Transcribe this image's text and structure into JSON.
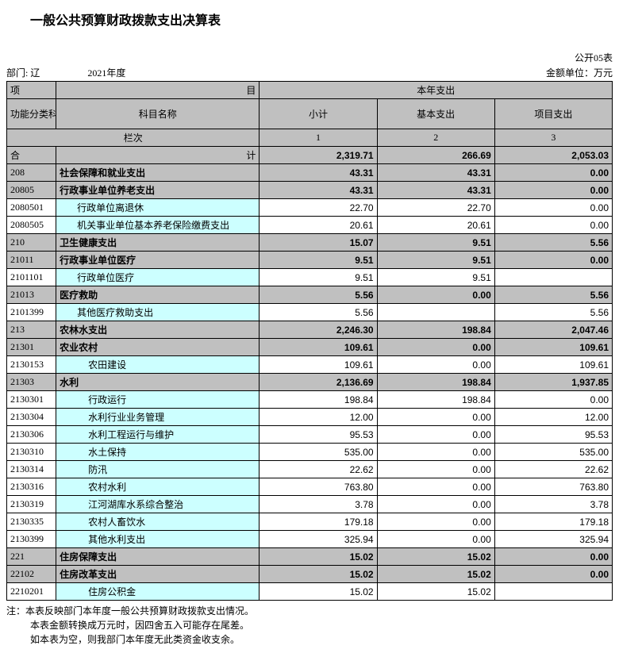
{
  "title": "一般公共预算财政拨款支出决算表",
  "form_no": "公开05表",
  "dept_label": "部门: 辽",
  "year": "2021年度",
  "unit": "金额单位：万元",
  "headers": {
    "project": "项",
    "project_suffix": "目",
    "current_year": "本年支出",
    "func_code": "功能分类科目编码",
    "subj_name": "科目名称",
    "subtotal": "小计",
    "basic": "基本支出",
    "proj": "项目支出",
    "lanci": "栏次",
    "c1": "1",
    "c2": "2",
    "c3": "3",
    "total_code": "合",
    "total_name": "计"
  },
  "total": {
    "v1": "2,319.71",
    "v2": "266.69",
    "v3": "2,053.03"
  },
  "rows": [
    {
      "code": "208",
      "name": "社会保障和就业支出",
      "v1": "43.31",
      "v2": "43.31",
      "v3": "0.00",
      "lvl": 0,
      "shade": true
    },
    {
      "code": "20805",
      "name": "行政事业单位养老支出",
      "v1": "43.31",
      "v2": "43.31",
      "v3": "0.00",
      "lvl": 0,
      "shade": true
    },
    {
      "code": "2080501",
      "name": "行政单位离退休",
      "v1": "22.70",
      "v2": "22.70",
      "v3": "0.00",
      "lvl": 1,
      "shade": false
    },
    {
      "code": "2080505",
      "name": "机关事业单位基本养老保险缴费支出",
      "v1": "20.61",
      "v2": "20.61",
      "v3": "0.00",
      "lvl": 1,
      "shade": false
    },
    {
      "code": "210",
      "name": "卫生健康支出",
      "v1": "15.07",
      "v2": "9.51",
      "v3": "5.56",
      "lvl": 0,
      "shade": true
    },
    {
      "code": "21011",
      "name": "行政事业单位医疗",
      "v1": "9.51",
      "v2": "9.51",
      "v3": "0.00",
      "lvl": 0,
      "shade": true
    },
    {
      "code": "2101101",
      "name": "行政单位医疗",
      "v1": "9.51",
      "v2": "9.51",
      "v3": "",
      "lvl": 1,
      "shade": false
    },
    {
      "code": "21013",
      "name": "医疗救助",
      "v1": "5.56",
      "v2": "0.00",
      "v3": "5.56",
      "lvl": 0,
      "shade": true
    },
    {
      "code": "2101399",
      "name": "其他医疗救助支出",
      "v1": "5.56",
      "v2": "",
      "v3": "5.56",
      "lvl": 1,
      "shade": false
    },
    {
      "code": "213",
      "name": "农林水支出",
      "v1": "2,246.30",
      "v2": "198.84",
      "v3": "2,047.46",
      "lvl": 0,
      "shade": true
    },
    {
      "code": "21301",
      "name": "农业农村",
      "v1": "109.61",
      "v2": "0.00",
      "v3": "109.61",
      "lvl": 0,
      "shade": true
    },
    {
      "code": "2130153",
      "name": "农田建设",
      "v1": "109.61",
      "v2": "0.00",
      "v3": "109.61",
      "lvl": 2,
      "shade": false
    },
    {
      "code": "21303",
      "name": "水利",
      "v1": "2,136.69",
      "v2": "198.84",
      "v3": "1,937.85",
      "lvl": 0,
      "shade": true
    },
    {
      "code": "2130301",
      "name": "行政运行",
      "v1": "198.84",
      "v2": "198.84",
      "v3": "0.00",
      "lvl": 2,
      "shade": false
    },
    {
      "code": "2130304",
      "name": "水利行业业务管理",
      "v1": "12.00",
      "v2": "0.00",
      "v3": "12.00",
      "lvl": 2,
      "shade": false
    },
    {
      "code": "2130306",
      "name": "水利工程运行与维护",
      "v1": "95.53",
      "v2": "0.00",
      "v3": "95.53",
      "lvl": 2,
      "shade": false
    },
    {
      "code": "2130310",
      "name": "水土保持",
      "v1": "535.00",
      "v2": "0.00",
      "v3": "535.00",
      "lvl": 2,
      "shade": false
    },
    {
      "code": "2130314",
      "name": "防汛",
      "v1": "22.62",
      "v2": "0.00",
      "v3": "22.62",
      "lvl": 2,
      "shade": false
    },
    {
      "code": "2130316",
      "name": "农村水利",
      "v1": "763.80",
      "v2": "0.00",
      "v3": "763.80",
      "lvl": 2,
      "shade": false
    },
    {
      "code": "2130319",
      "name": "江河湖库水系综合整治",
      "v1": "3.78",
      "v2": "0.00",
      "v3": "3.78",
      "lvl": 2,
      "shade": false
    },
    {
      "code": "2130335",
      "name": "农村人畜饮水",
      "v1": "179.18",
      "v2": "0.00",
      "v3": "179.18",
      "lvl": 2,
      "shade": false
    },
    {
      "code": "2130399",
      "name": "其他水利支出",
      "v1": "325.94",
      "v2": "0.00",
      "v3": "325.94",
      "lvl": 2,
      "shade": false
    },
    {
      "code": "221",
      "name": "住房保障支出",
      "v1": "15.02",
      "v2": "15.02",
      "v3": "0.00",
      "lvl": 0,
      "shade": true
    },
    {
      "code": "22102",
      "name": "住房改革支出",
      "v1": "15.02",
      "v2": "15.02",
      "v3": "0.00",
      "lvl": 0,
      "shade": true
    },
    {
      "code": "2210201",
      "name": "住房公积金",
      "v1": "15.02",
      "v2": "15.02",
      "v3": "",
      "lvl": 2,
      "shade": false
    }
  ],
  "notes": [
    "注：本表反映部门本年度一般公共预算财政拨款支出情况。",
    "本表金额转换成万元时，因四舍五入可能存在尾差。",
    "如本表为空，则我部门本年度无此类资金收支余。"
  ]
}
